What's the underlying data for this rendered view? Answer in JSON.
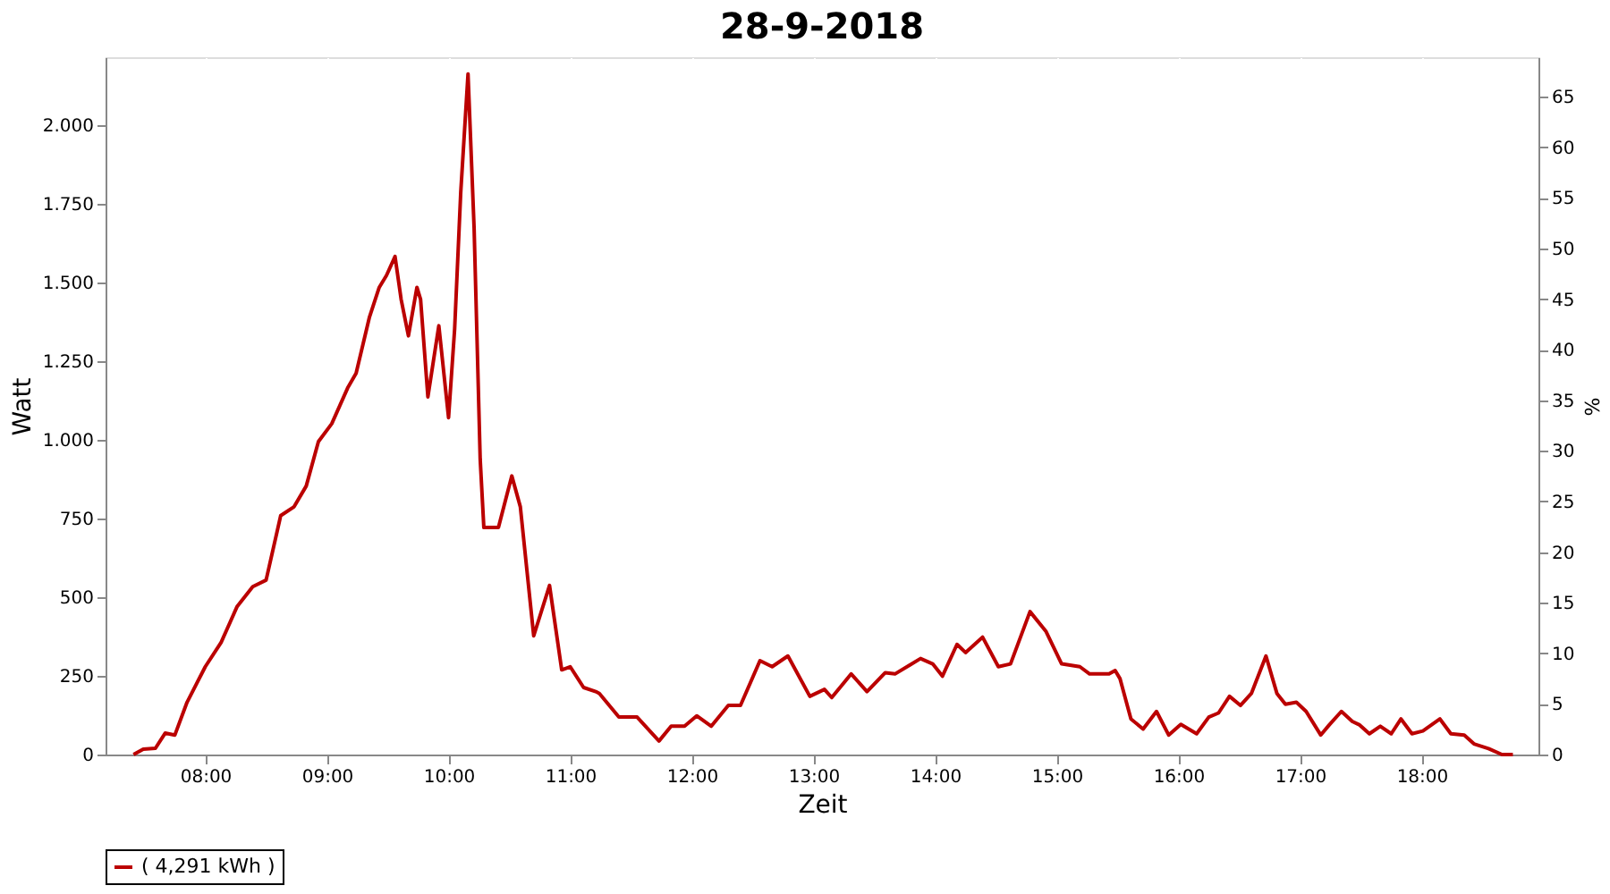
{
  "chart_data": {
    "type": "line",
    "title": "28-9-2018",
    "xlabel": "Zeit",
    "ylabel": "Watt",
    "y2label": "%",
    "xlim": [
      7.18,
      18.96
    ],
    "xticks": [
      {
        "value": 8,
        "label": "08:00"
      },
      {
        "value": 9,
        "label": "09:00"
      },
      {
        "value": 10,
        "label": "10:00"
      },
      {
        "value": 11,
        "label": "11:00"
      },
      {
        "value": 12,
        "label": "12:00"
      },
      {
        "value": 13,
        "label": "13:00"
      },
      {
        "value": 14,
        "label": "14:00"
      },
      {
        "value": 15,
        "label": "15:00"
      },
      {
        "value": 16,
        "label": "16:00"
      },
      {
        "value": 17,
        "label": "17:00"
      },
      {
        "value": 18,
        "label": "18:00"
      }
    ],
    "ylim": [
      0,
      2215
    ],
    "yticks": [
      0,
      250,
      500,
      750,
      {
        "value": 1000,
        "label": "1.000"
      },
      {
        "value": 1250,
        "label": "1.250"
      },
      {
        "value": 1500,
        "label": "1.500"
      },
      {
        "value": 1750,
        "label": "1.750"
      },
      {
        "value": 2000,
        "label": "2.000"
      }
    ],
    "y2lim": [
      0,
      68.9
    ],
    "y2ticks": [
      0,
      5,
      10,
      15,
      20,
      25,
      30,
      35,
      40,
      45,
      50,
      55,
      60,
      65
    ],
    "grid": true,
    "legend": "bottom",
    "marker": "none",
    "line_style": "solid",
    "series": [
      {
        "name": "( 4,291 kWh )",
        "color": "#bb0000",
        "x": [
          7.41,
          7.49,
          7.59,
          7.67,
          7.75,
          7.85,
          8.0,
          8.13,
          8.26,
          8.39,
          8.5,
          8.62,
          8.73,
          8.83,
          8.93,
          9.04,
          9.17,
          9.24,
          9.35,
          9.43,
          9.49,
          9.56,
          9.61,
          9.67,
          9.74,
          9.77,
          9.83,
          9.92,
          10.0,
          10.05,
          10.1,
          10.16,
          10.21,
          10.26,
          10.29,
          10.41,
          10.52,
          10.59,
          10.7,
          10.83,
          10.93,
          11.0,
          11.11,
          11.21,
          11.24,
          11.4,
          11.55,
          11.73,
          11.83,
          11.94,
          12.04,
          12.16,
          12.3,
          12.4,
          12.56,
          12.66,
          12.79,
          12.97,
          13.09,
          13.15,
          13.31,
          13.44,
          13.59,
          13.67,
          13.88,
          13.98,
          14.06,
          14.18,
          14.25,
          14.39,
          14.52,
          14.62,
          14.78,
          14.91,
          15.04,
          15.19,
          15.27,
          15.43,
          15.48,
          15.52,
          15.61,
          15.71,
          15.82,
          15.92,
          16.02,
          16.15,
          16.25,
          16.33,
          16.42,
          16.51,
          16.6,
          16.72,
          16.81,
          16.88,
          16.97,
          17.05,
          17.17,
          17.24,
          17.34,
          17.43,
          17.49,
          17.57,
          17.66,
          17.75,
          17.83,
          17.92,
          18.01,
          18.15,
          18.24,
          18.35,
          18.43,
          18.55,
          18.66,
          18.75
        ],
        "values": [
          0,
          17,
          20,
          68,
          62,
          166,
          279,
          356,
          469,
          533,
          554,
          759,
          787,
          853,
          994,
          1051,
          1164,
          1211,
          1390,
          1484,
          1522,
          1582,
          1446,
          1330,
          1484,
          1446,
          1136,
          1362,
          1070,
          1352,
          1785,
          2162,
          1672,
          938,
          721,
          721,
          885,
          787,
          377,
          537,
          269,
          279,
          213,
          200,
          194,
          119,
          119,
          43,
          90,
          90,
          123,
          90,
          156,
          156,
          298,
          279,
          313,
          185,
          207,
          181,
          256,
          200,
          260,
          256,
          305,
          288,
          249,
          350,
          324,
          373,
          279,
          288,
          454,
          392,
          288,
          279,
          256,
          256,
          267,
          241,
          113,
          81,
          137,
          62,
          96,
          66,
          119,
          132,
          185,
          156,
          194,
          313,
          194,
          160,
          166,
          137,
          62,
          94,
          137,
          105,
          94,
          66,
          90,
          66,
          113,
          66,
          75,
          113,
          66,
          62,
          34,
          19,
          0,
          0
        ]
      }
    ]
  }
}
